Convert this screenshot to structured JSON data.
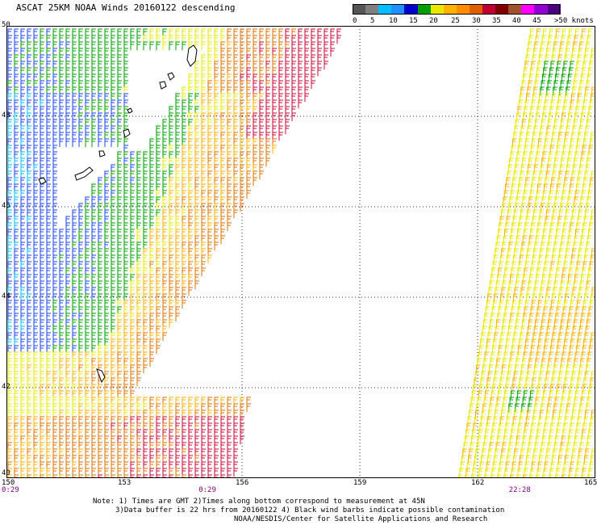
{
  "title": "ASCAT 25KM NOAA Winds 20160122 descending",
  "colorbar": {
    "colors": [
      "#555555",
      "#7f7f7f",
      "#00bfff",
      "#1e90ff",
      "#0000cd",
      "#00a000",
      "#e8e800",
      "#ffb300",
      "#ff8c00",
      "#e06000",
      "#c00030",
      "#800000",
      "#a0522d",
      "#ff00ff",
      "#9400d3",
      "#4b0082"
    ],
    "labels": [
      {
        "text": "0",
        "offset": 0
      },
      {
        "text": "5",
        "offset": 22
      },
      {
        "text": "10",
        "offset": 45
      },
      {
        "text": "15",
        "offset": 70
      },
      {
        "text": "20",
        "offset": 95
      },
      {
        "text": "25",
        "offset": 122
      },
      {
        "text": "30",
        "offset": 148
      },
      {
        "text": "35",
        "offset": 173
      },
      {
        "text": "40",
        "offset": 198
      },
      {
        "text": "45",
        "offset": 223
      },
      {
        "text": ">50 knots",
        "offset": 250
      }
    ]
  },
  "map": {
    "lat_range": [
      40,
      50
    ],
    "lon_range": [
      150,
      165
    ],
    "lat_labels": [
      "50",
      "48",
      "46",
      "44",
      "42",
      "40"
    ],
    "lon_labels": [
      "150",
      "153",
      "156",
      "159",
      "162",
      "165"
    ],
    "time_labels": [
      {
        "text": "0:29",
        "lon": 150.0
      },
      {
        "text": "0:29",
        "lon": 155.1
      },
      {
        "text": "22:28",
        "lon": 163.0
      }
    ]
  },
  "notes": {
    "line1": "Note: 1) Times are GMT 2)Times along bottom correspond to measurement at 45N",
    "line2": "3)Data buffer is 22 hrs from 20160122 4) Black wind barbs indicate possible contamination",
    "line3": "NOAA/NESDIS/Center for Satellite Applications and Research"
  }
}
